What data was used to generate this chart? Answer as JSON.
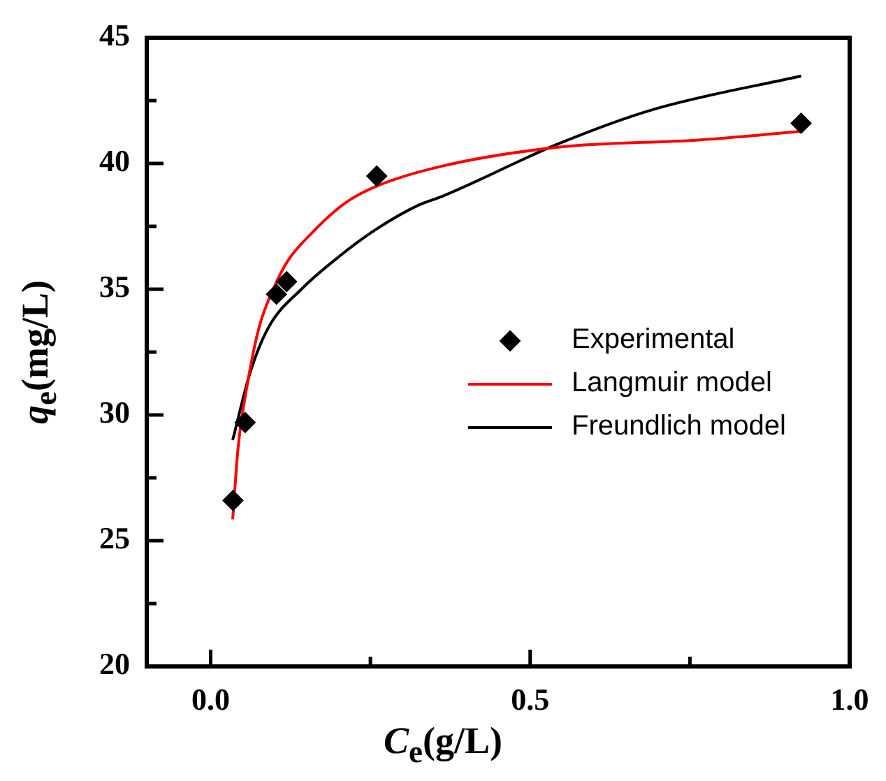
{
  "chart_data": {
    "type": "line",
    "xlabel": "C$_{e}$(g/L)",
    "ylabel": "q$_{e}$(mg/L)",
    "xlim": [
      -0.1,
      1.0
    ],
    "xticks": [
      {
        "value": 0,
        "label": "0.0"
      },
      {
        "value": 0.25,
        "label": null
      },
      0.5,
      {
        "value": 0.75,
        "label": null
      },
      {
        "value": 1,
        "label": "1.0"
      }
    ],
    "ylim": [
      20,
      45
    ],
    "yticks": [
      20,
      {
        "value": 22.5,
        "label": null
      },
      25,
      {
        "value": 27.5,
        "label": null
      },
      30,
      {
        "value": 32.5,
        "label": null
      },
      35,
      {
        "value": 37.5,
        "label": null
      },
      40,
      {
        "value": 42.5,
        "label": null
      },
      45
    ],
    "grid": false,
    "legend": "right",
    "series": [
      {
        "name": "Experimental",
        "type": "scatter",
        "marker": "diamond",
        "color": "#000000",
        "x": [
          0.035,
          0.054,
          0.103,
          0.119,
          0.26,
          0.924
        ],
        "values": [
          26.6,
          29.7,
          34.8,
          35.3,
          39.5,
          41.6
        ]
      },
      {
        "name": "Langmuir model",
        "marker": "none",
        "line_style": "solid",
        "color": "#ff0000",
        "x": [
          0.0345,
          0.043,
          0.058,
          0.076,
          0.098,
          0.12,
          0.157,
          0.209,
          0.26,
          0.363,
          0.546,
          0.767,
          0.924
        ],
        "values": [
          25.85,
          28.7,
          31.3,
          33.5,
          35.0,
          36.1,
          37.2,
          38.4,
          39.1,
          39.9,
          40.65,
          40.94,
          41.28
        ]
      },
      {
        "name": "Freundlich model",
        "marker": "none",
        "line_style": "solid",
        "color": "#000000",
        "x": [
          0.0345,
          0.062,
          0.091,
          0.142,
          0.201,
          0.26,
          0.326,
          0.363,
          0.546,
          0.693,
          0.924
        ],
        "values": [
          29.0,
          31.7,
          33.5,
          35.0,
          36.3,
          37.4,
          38.35,
          38.7,
          40.8,
          42.15,
          43.48
        ]
      }
    ]
  }
}
